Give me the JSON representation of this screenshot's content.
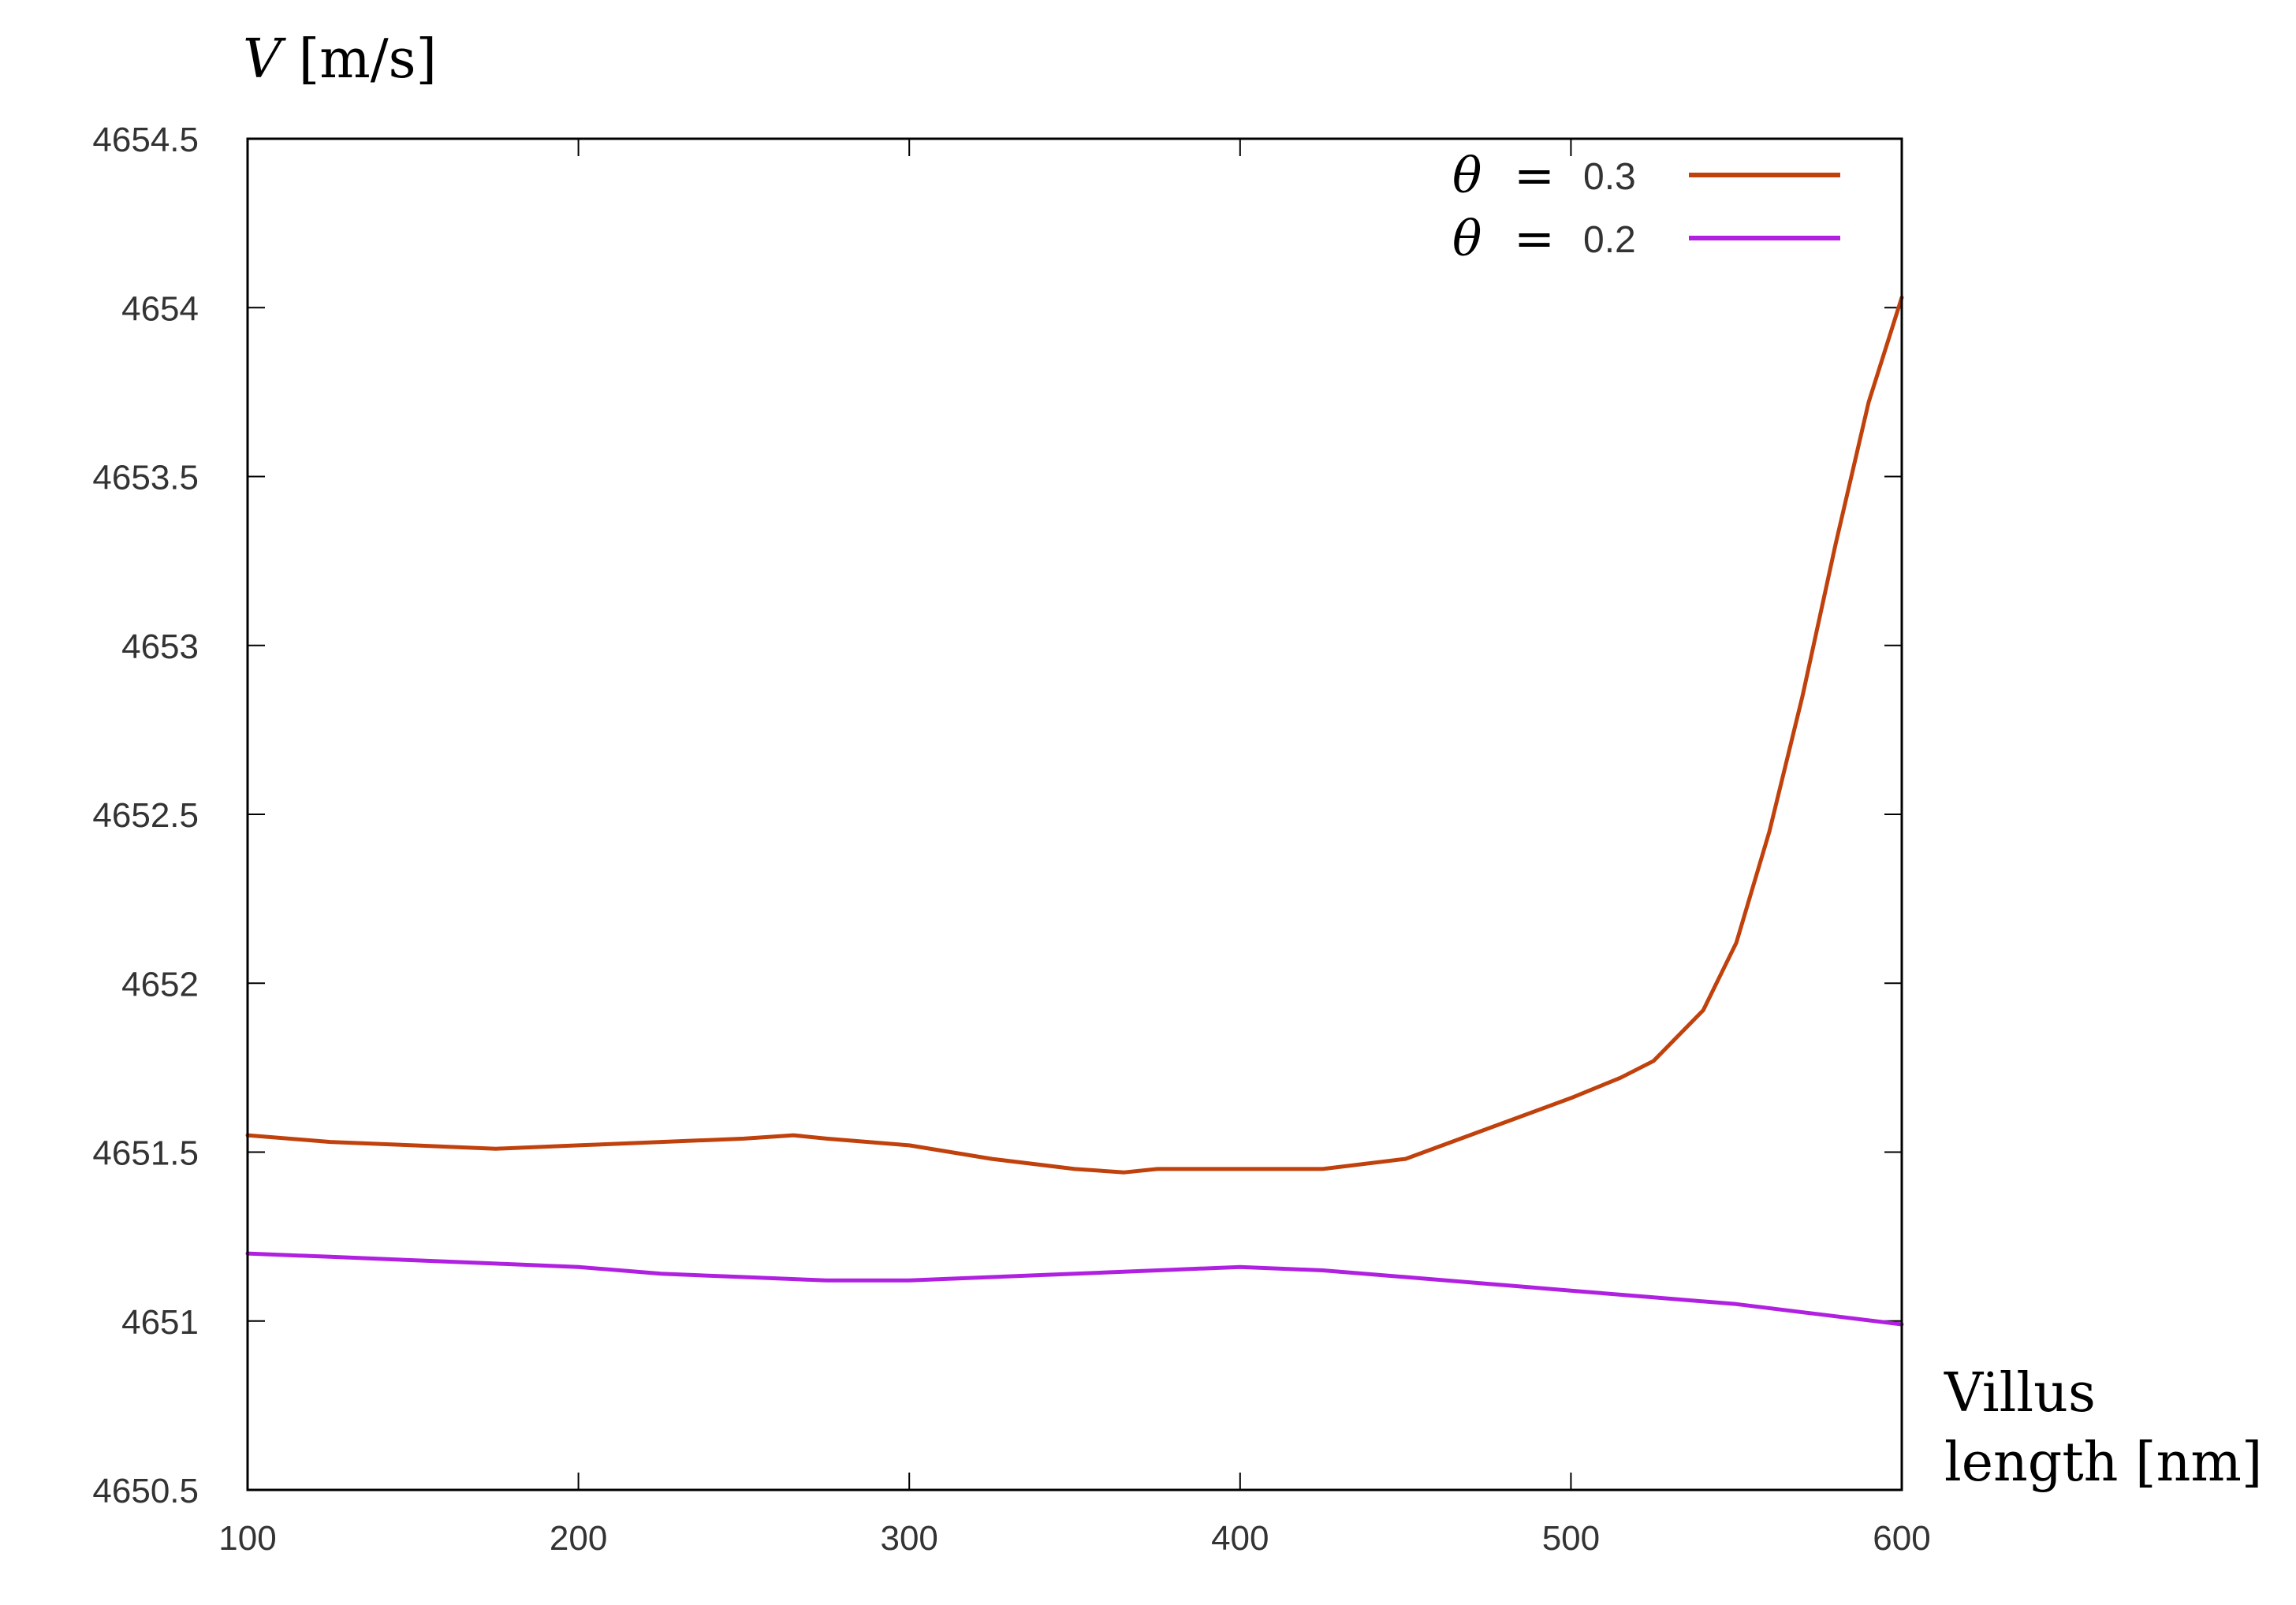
{
  "chart_data": {
    "type": "line",
    "title": "",
    "ylabel_italic": "V",
    "ylabel_rest": " [m/s]",
    "xlabel_lines": [
      "Villus",
      "length [nm]"
    ],
    "xlim": [
      100,
      600
    ],
    "ylim": [
      4650.5,
      4654.5
    ],
    "xticks": [
      100,
      200,
      300,
      400,
      500,
      600
    ],
    "yticks": [
      4650.5,
      4651,
      4651.5,
      4652,
      4652.5,
      4653,
      4653.5,
      4654,
      4654.5
    ],
    "xtick_labels": [
      "100",
      "200",
      "300",
      "400",
      "500",
      "600"
    ],
    "ytick_labels": [
      "4650.5",
      "4651",
      "4651.5",
      "4652",
      "4652.5",
      "4653",
      "4653.5",
      "4654",
      "4654.5"
    ],
    "grid": false,
    "legend_position": "top-right",
    "legend_symbol": "θ",
    "legend_equals": "=",
    "series": [
      {
        "name": "θ = 0.3",
        "value_label": "0.3",
        "color": "#c0410c",
        "x": [
          100,
          125,
          150,
          175,
          200,
          225,
          250,
          265,
          275,
          300,
          325,
          350,
          365,
          375,
          400,
          425,
          450,
          475,
          500,
          515,
          525,
          540,
          550,
          560,
          570,
          580,
          590,
          600
        ],
        "y": [
          4651.55,
          4651.53,
          4651.52,
          4651.51,
          4651.52,
          4651.53,
          4651.54,
          4651.55,
          4651.54,
          4651.52,
          4651.48,
          4651.45,
          4651.44,
          4651.45,
          4651.45,
          4651.45,
          4651.48,
          4651.57,
          4651.66,
          4651.72,
          4651.77,
          4651.92,
          4652.12,
          4652.45,
          4652.85,
          4653.3,
          4653.72,
          4654.03
        ]
      },
      {
        "name": "θ = 0.2",
        "value_label": "0.2",
        "color": "#b020e0",
        "x": [
          100,
          125,
          150,
          175,
          200,
          225,
          250,
          275,
          300,
          325,
          350,
          375,
          400,
          425,
          450,
          475,
          500,
          525,
          550,
          575,
          600
        ],
        "y": [
          4651.2,
          4651.19,
          4651.18,
          4651.17,
          4651.16,
          4651.14,
          4651.13,
          4651.12,
          4651.12,
          4651.13,
          4651.14,
          4651.15,
          4651.16,
          4651.15,
          4651.13,
          4651.11,
          4651.09,
          4651.07,
          4651.05,
          4651.02,
          4650.99
        ]
      }
    ]
  }
}
